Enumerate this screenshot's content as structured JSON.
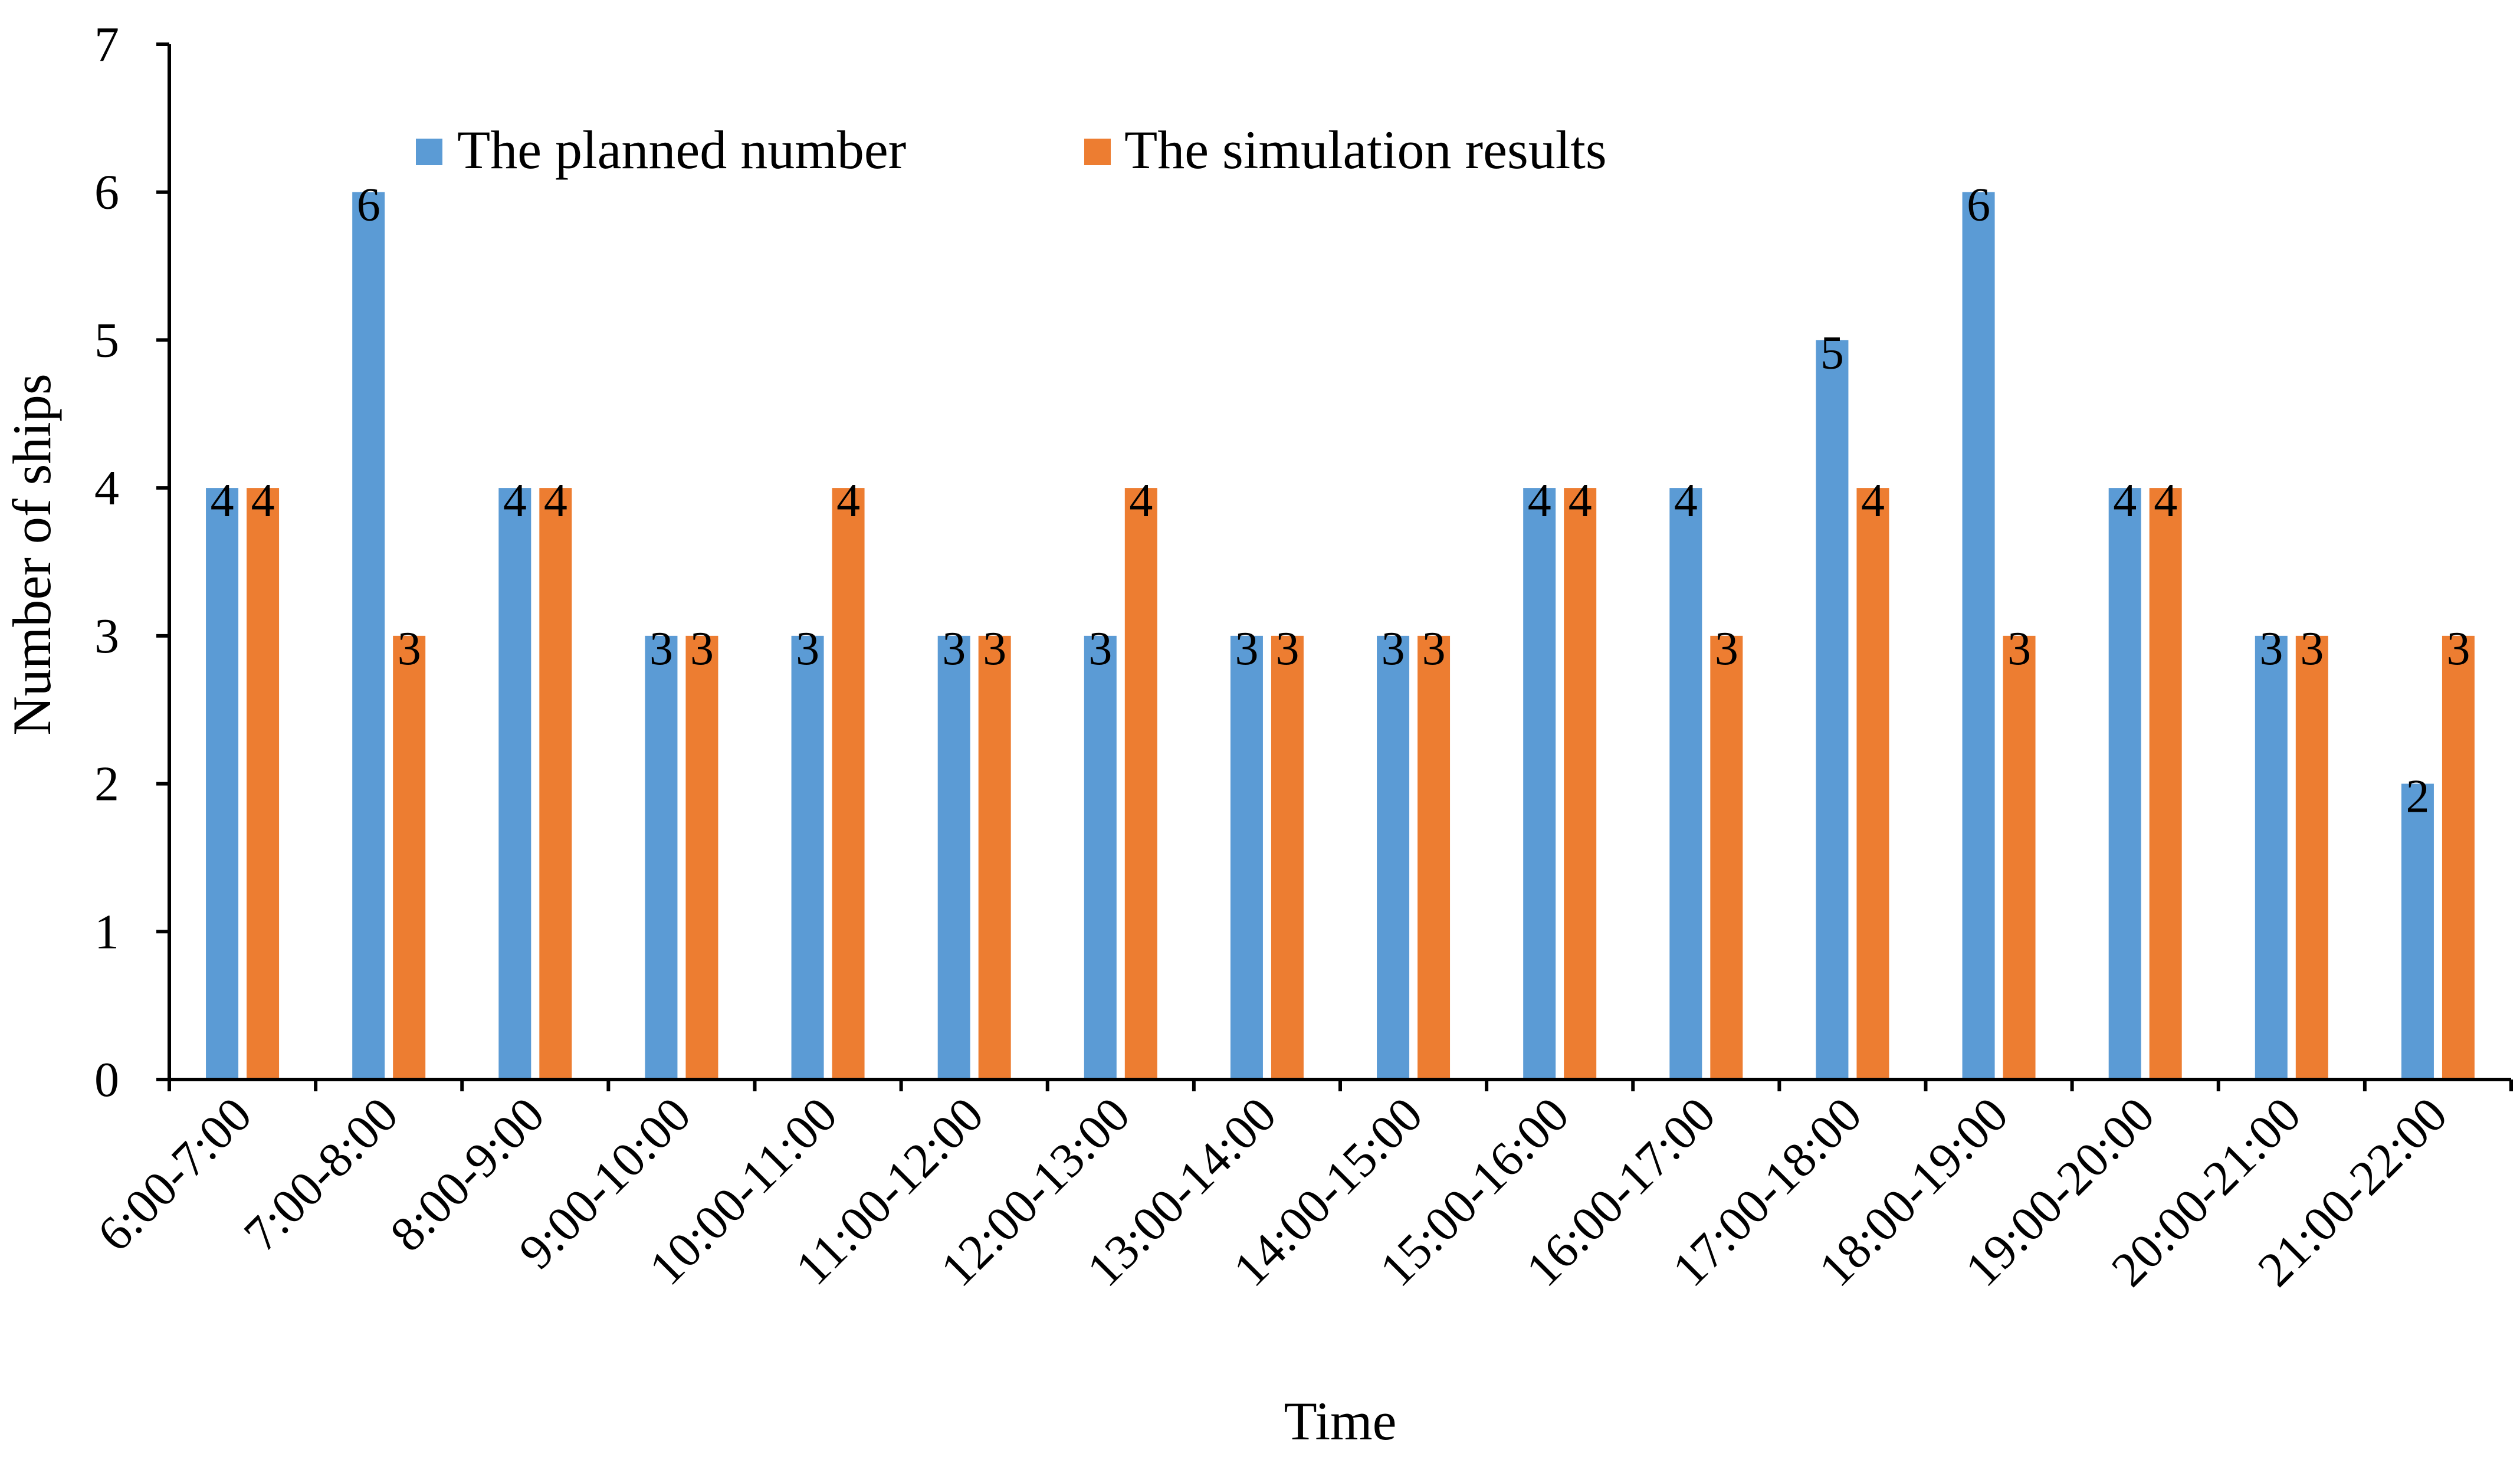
{
  "chart_data": {
    "type": "bar",
    "title": "",
    "xlabel": "Time",
    "ylabel": "Number of ships",
    "ylim": [
      0,
      7
    ],
    "yticks": [
      "0",
      "1",
      "2",
      "3",
      "4",
      "5",
      "6",
      "7"
    ],
    "grid": false,
    "legend_position": "top",
    "categories": [
      "6:00-7:00",
      "7:00-8:00",
      "8:00-9:00",
      "9:00-10:00",
      "10:00-11:00",
      "11:00-12:00",
      "12:00-13:00",
      "13:00-14:00",
      "14:00-15:00",
      "15:00-16:00",
      "16:00-17:00",
      "17:00-18:00",
      "18:00-19:00",
      "19:00-20:00",
      "20:00-21:00",
      "21:00-22:00"
    ],
    "series": [
      {
        "name": "The planned number",
        "color": "#5B9BD5",
        "values": [
          4,
          6,
          4,
          3,
          3,
          3,
          3,
          3,
          3,
          4,
          4,
          5,
          6,
          4,
          3,
          2
        ]
      },
      {
        "name": "The simulation results",
        "color": "#ED7D31",
        "values": [
          4,
          3,
          4,
          3,
          4,
          3,
          4,
          3,
          3,
          4,
          3,
          4,
          3,
          4,
          3,
          3
        ]
      }
    ]
  }
}
